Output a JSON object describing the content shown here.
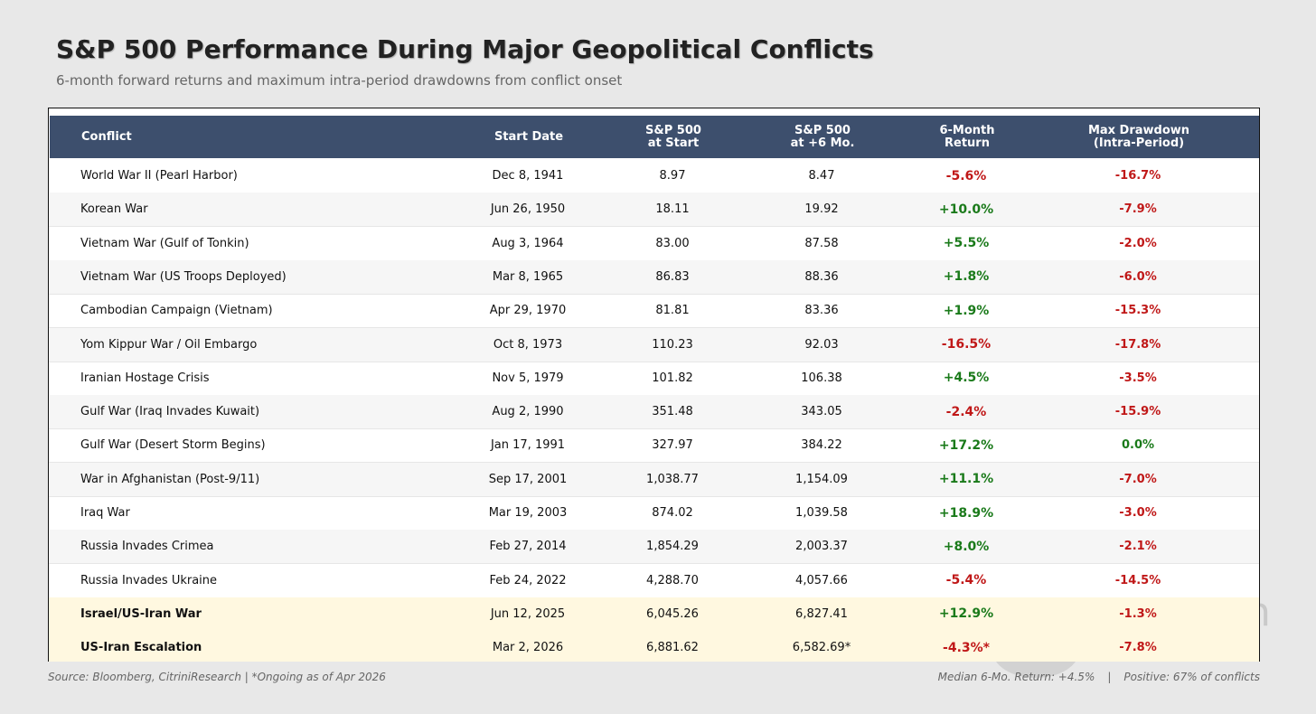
{
  "chart_data": {
    "type": "table",
    "title": "S&P 500 Performance During Major Geopolitical Conflicts",
    "subtitle": "6-month forward returns and maximum intra-period drawdowns from conflict onset",
    "columns": [
      "Conflict",
      "Start Date",
      "S&P 500\nat Start",
      "S&P 500\nat +6 Mo.",
      "6-Month\nReturn",
      "Max Drawdown\n(Intra-Period)"
    ],
    "rows": [
      {
        "conflict": "World War II (Pearl Harbor)",
        "date": "Dec 8, 1941",
        "start": "8.97",
        "plus6": "8.47",
        "ret": "-5.6%",
        "ret_value": -5.6,
        "dd": "-16.7%",
        "dd_value": -16.7,
        "highlight": false
      },
      {
        "conflict": "Korean War",
        "date": "Jun 26, 1950",
        "start": "18.11",
        "plus6": "19.92",
        "ret": "+10.0%",
        "ret_value": 10.0,
        "dd": "-7.9%",
        "dd_value": -7.9,
        "highlight": false
      },
      {
        "conflict": "Vietnam War (Gulf of Tonkin)",
        "date": "Aug 3, 1964",
        "start": "83.00",
        "plus6": "87.58",
        "ret": "+5.5%",
        "ret_value": 5.5,
        "dd": "-2.0%",
        "dd_value": -2.0,
        "highlight": false
      },
      {
        "conflict": "Vietnam War (US Troops Deployed)",
        "date": "Mar 8, 1965",
        "start": "86.83",
        "plus6": "88.36",
        "ret": "+1.8%",
        "ret_value": 1.8,
        "dd": "-6.0%",
        "dd_value": -6.0,
        "highlight": false
      },
      {
        "conflict": "Cambodian Campaign (Vietnam)",
        "date": "Apr 29, 1970",
        "start": "81.81",
        "plus6": "83.36",
        "ret": "+1.9%",
        "ret_value": 1.9,
        "dd": "-15.3%",
        "dd_value": -15.3,
        "highlight": false
      },
      {
        "conflict": "Yom Kippur War / Oil Embargo",
        "date": "Oct 8, 1973",
        "start": "110.23",
        "plus6": "92.03",
        "ret": "-16.5%",
        "ret_value": -16.5,
        "dd": "-17.8%",
        "dd_value": -17.8,
        "highlight": false
      },
      {
        "conflict": "Iranian Hostage Crisis",
        "date": "Nov 5, 1979",
        "start": "101.82",
        "plus6": "106.38",
        "ret": "+4.5%",
        "ret_value": 4.5,
        "dd": "-3.5%",
        "dd_value": -3.5,
        "highlight": false
      },
      {
        "conflict": "Gulf War (Iraq Invades Kuwait)",
        "date": "Aug 2, 1990",
        "start": "351.48",
        "plus6": "343.05",
        "ret": "-2.4%",
        "ret_value": -2.4,
        "dd": "-15.9%",
        "dd_value": -15.9,
        "highlight": false
      },
      {
        "conflict": "Gulf War (Desert Storm Begins)",
        "date": "Jan 17, 1991",
        "start": "327.97",
        "plus6": "384.22",
        "ret": "+17.2%",
        "ret_value": 17.2,
        "dd": "0.0%",
        "dd_value": 0.0,
        "highlight": false
      },
      {
        "conflict": "War in Afghanistan (Post-9/11)",
        "date": "Sep 17, 2001",
        "start": "1,038.77",
        "plus6": "1,154.09",
        "ret": "+11.1%",
        "ret_value": 11.1,
        "dd": "-7.0%",
        "dd_value": -7.0,
        "highlight": false
      },
      {
        "conflict": "Iraq War",
        "date": "Mar 19, 2003",
        "start": "874.02",
        "plus6": "1,039.58",
        "ret": "+18.9%",
        "ret_value": 18.9,
        "dd": "-3.0%",
        "dd_value": -3.0,
        "highlight": false
      },
      {
        "conflict": "Russia Invades Crimea",
        "date": "Feb 27, 2014",
        "start": "1,854.29",
        "plus6": "2,003.37",
        "ret": "+8.0%",
        "ret_value": 8.0,
        "dd": "-2.1%",
        "dd_value": -2.1,
        "highlight": false
      },
      {
        "conflict": "Russia Invades Ukraine",
        "date": "Feb 24, 2022",
        "start": "4,288.70",
        "plus6": "4,057.66",
        "ret": "-5.4%",
        "ret_value": -5.4,
        "dd": "-14.5%",
        "dd_value": -14.5,
        "highlight": false
      },
      {
        "conflict": "Israel/US-Iran War",
        "date": "Jun 12, 2025",
        "start": "6,045.26",
        "plus6": "6,827.41",
        "ret": "+12.9%",
        "ret_value": 12.9,
        "dd": "-1.3%",
        "dd_value": -1.3,
        "highlight": true
      },
      {
        "conflict": "US-Iran Escalation",
        "date": "Mar 2, 2026",
        "start": "6,881.62",
        "plus6": "6,582.69*",
        "ret": "-4.3%*",
        "ret_value": -4.3,
        "dd": "-7.8%",
        "dd_value": -7.8,
        "highlight": true
      }
    ]
  },
  "footer": {
    "source": "Source: Bloomberg, CitriniResearch  |  *Ongoing as of Apr 2026",
    "median": "Median 6-Mo. Return: +4.5%",
    "separator": "|",
    "positive": "Positive: 67% of conflicts"
  },
  "watermark": "h",
  "colors": {
    "header_bg": "#3d4f6d",
    "positive": "#1a7a1a",
    "negative": "#c01818",
    "highlight_row": "#fff8e0"
  }
}
